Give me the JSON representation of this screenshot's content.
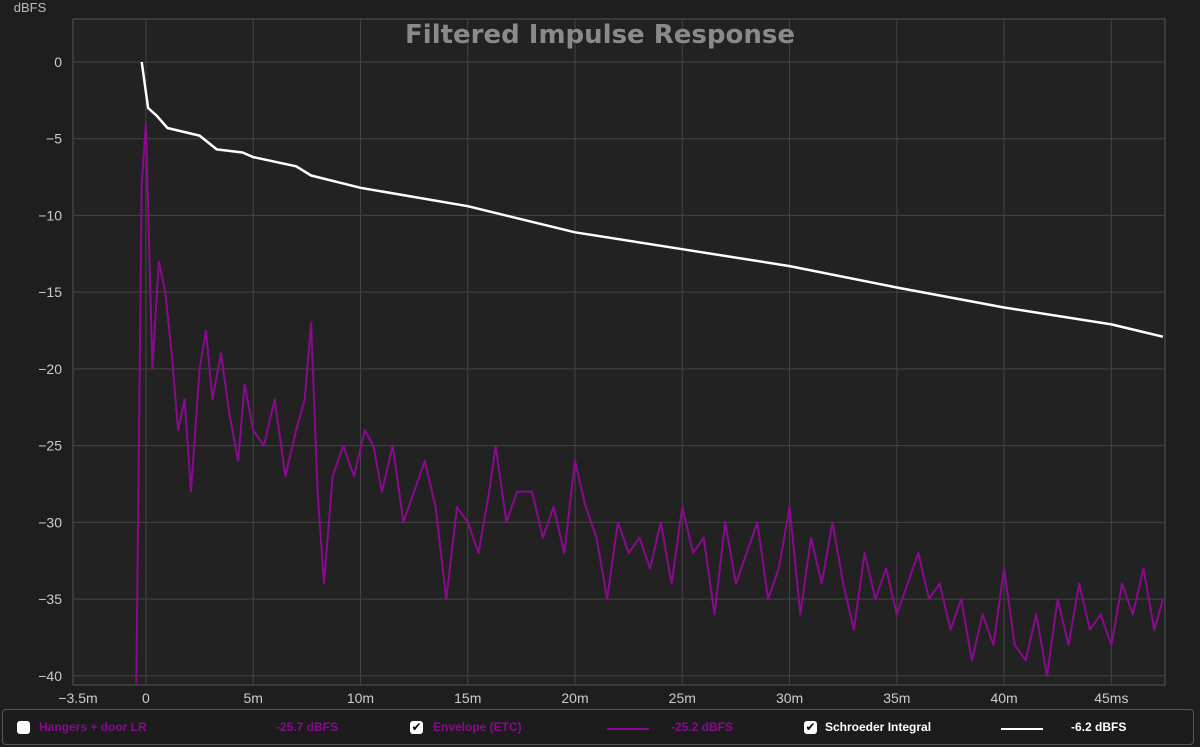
{
  "chart_data": {
    "type": "line",
    "title": "Filtered Impulse Response",
    "ylabel": "dBFS",
    "xlabel": "",
    "xlim": [
      -3.4,
      47.5
    ],
    "ylim": [
      -40.6,
      2.8
    ],
    "grid": true,
    "x_ticks": [
      -3.5,
      0,
      5,
      10,
      15,
      20,
      25,
      30,
      35,
      40,
      45
    ],
    "x_tick_labels": [
      "−3.5m",
      "0",
      "5m",
      "10m",
      "15m",
      "20m",
      "25m",
      "30m",
      "35m",
      "40m",
      "45ms"
    ],
    "y_ticks": [
      0,
      -5,
      -10,
      -15,
      -20,
      -25,
      -30,
      -35,
      -40
    ],
    "y_tick_labels": [
      "0",
      "−5",
      "−10",
      "−15",
      "−20",
      "−25",
      "−30",
      "−35",
      "−40"
    ],
    "series": [
      {
        "name": "Envelope (ETC)",
        "color": "#8a0a8f",
        "x": [
          -0.45,
          -0.2,
          0,
          0.3,
          0.6,
          0.9,
          1.2,
          1.5,
          1.8,
          2.1,
          2.5,
          2.8,
          3.1,
          3.5,
          3.9,
          4.3,
          4.6,
          5,
          5.5,
          6,
          6.5,
          7,
          7.4,
          7.7,
          8,
          8.3,
          8.7,
          9.2,
          9.7,
          10.2,
          10.6,
          11,
          11.5,
          12,
          12.5,
          13,
          13.5,
          14,
          14.5,
          15,
          15.5,
          16,
          16.3,
          16.8,
          17.3,
          18,
          18.5,
          19,
          19.5,
          20,
          20.5,
          21,
          21.5,
          22,
          22.5,
          23,
          23.5,
          24,
          24.5,
          25,
          25.5,
          26,
          26.5,
          27,
          27.5,
          28,
          28.5,
          29,
          29.5,
          30,
          30.5,
          31,
          31.5,
          32,
          32.5,
          33,
          33.5,
          34,
          34.5,
          35,
          35.5,
          36,
          36.5,
          37,
          37.5,
          38,
          38.5,
          39,
          39.5,
          40,
          40.5,
          41,
          41.5,
          42,
          42.5,
          43,
          43.5,
          44,
          44.5,
          45,
          45.5,
          46,
          46.5,
          47,
          47.4
        ],
        "y": [
          -40.5,
          -8,
          -4,
          -20,
          -13,
          -15,
          -19,
          -24,
          -22,
          -28,
          -20,
          -17.5,
          -22,
          -19,
          -23,
          -26,
          -21,
          -24,
          -25,
          -22,
          -27,
          -24,
          -22,
          -17,
          -28,
          -34,
          -27,
          -25,
          -27,
          -24,
          -25,
          -28,
          -25,
          -30,
          -28,
          -26,
          -29,
          -35,
          -29,
          -30,
          -32,
          -28,
          -25,
          -30,
          -28,
          -28,
          -31,
          -29,
          -32,
          -26,
          -29,
          -31,
          -35,
          -30,
          -32,
          -31,
          -33,
          -30,
          -34,
          -29,
          -32,
          -31,
          -36,
          -30,
          -34,
          -32,
          -30,
          -35,
          -33,
          -29,
          -36,
          -31,
          -34,
          -30,
          -34,
          -37,
          -32,
          -35,
          -33,
          -36,
          -34,
          -32,
          -35,
          -34,
          -37,
          -35,
          -39,
          -36,
          -38,
          -33,
          -38,
          -39,
          -36,
          -40,
          -35,
          -38,
          -34,
          -37,
          -36,
          -38,
          -34,
          -36,
          -33,
          -37,
          -35
        ]
      },
      {
        "name": "Schroeder Integral",
        "color": "#ffffff",
        "x": [
          -0.2,
          0.1,
          0.5,
          1,
          2.5,
          3.3,
          4.5,
          5,
          7,
          7.7,
          10,
          15,
          20,
          25,
          30,
          35,
          40,
          45,
          47.4
        ],
        "y": [
          0,
          -3,
          -3.5,
          -4.3,
          -4.8,
          -5.7,
          -5.9,
          -6.2,
          -6.8,
          -7.4,
          -8.2,
          -9.4,
          -11.1,
          -12.2,
          -13.3,
          -14.7,
          -16.0,
          -17.1,
          -17.9
        ]
      }
    ]
  },
  "legend": {
    "measurement": {
      "label": "Hangers + door LR",
      "value": "-25.7 dBFS",
      "checked": false,
      "color": "#8a0a8f"
    },
    "envelope": {
      "label": "Envelope (ETC)",
      "value": "-25.2 dBFS",
      "checked": true,
      "color": "#8a0a8f"
    },
    "schroeder": {
      "label": "Schroeder Integral",
      "value": "-6.2 dBFS",
      "checked": true,
      "color": "#ffffff"
    },
    "check_glyph": "✔"
  }
}
